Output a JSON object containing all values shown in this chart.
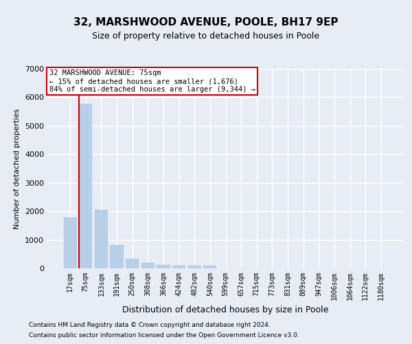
{
  "title1": "32, MARSHWOOD AVENUE, POOLE, BH17 9EP",
  "title2": "Size of property relative to detached houses in Poole",
  "xlabel": "Distribution of detached houses by size in Poole",
  "ylabel": "Number of detached properties",
  "footnote1": "Contains HM Land Registry data © Crown copyright and database right 2024.",
  "footnote2": "Contains public sector information licensed under the Open Government Licence v3.0.",
  "annotation_line1": "32 MARSHWOOD AVENUE: 75sqm",
  "annotation_line2": "← 15% of detached houses are smaller (1,676)",
  "annotation_line3": "84% of semi-detached houses are larger (9,344) →",
  "bar_values": [
    1780,
    5780,
    2060,
    820,
    340,
    190,
    120,
    100,
    95,
    90,
    0,
    0,
    0,
    0,
    0,
    0,
    0,
    0,
    0,
    0,
    0
  ],
  "bar_labels": [
    "17sqm",
    "75sqm",
    "133sqm",
    "191sqm",
    "250sqm",
    "308sqm",
    "366sqm",
    "424sqm",
    "482sqm",
    "540sqm",
    "599sqm",
    "657sqm",
    "715sqm",
    "773sqm",
    "831sqm",
    "889sqm",
    "947sqm",
    "1006sqm",
    "1064sqm",
    "1122sqm",
    "1180sqm"
  ],
  "bar_color": "#b8cfe8",
  "redline_index": 1,
  "ylim": [
    0,
    7000
  ],
  "yticks": [
    0,
    1000,
    2000,
    3000,
    4000,
    5000,
    6000,
    7000
  ],
  "background_color": "#e8edf5",
  "plot_bg_color": "#e8edf5",
  "grid_color": "#ffffff",
  "annotation_box_color": "#ffffff",
  "annotation_box_edge": "#cc0000",
  "redline_color": "#cc0000",
  "title1_fontsize": 11,
  "title2_fontsize": 9,
  "ylabel_fontsize": 8,
  "xlabel_fontsize": 9,
  "tick_fontsize": 7,
  "ytick_fontsize": 8,
  "footnote_fontsize": 6.5
}
